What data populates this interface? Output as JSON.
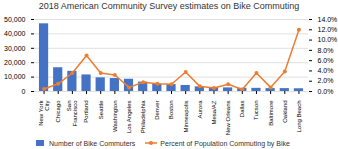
{
  "chart_data": {
    "type": "bar",
    "title": "2018 American Community Survey estimates on Bike Commuting",
    "categories": [
      "New York\nCity",
      "Chicago",
      "San\nFrancisco",
      "Portland",
      "Seattle",
      "Washington",
      "Los Angeles",
      "Philadelphia",
      "Denver",
      "Boston",
      "Minneapolis",
      "Aurora",
      "Mesa/AZ",
      "New Orleans",
      "Dallas",
      "Tucson",
      "Baltimore",
      "Oakland",
      "Long Beach"
    ],
    "series": [
      {
        "name": "Number of Bike Commuters",
        "type": "bar",
        "color": "#4472C4",
        "values": [
          47000,
          16500,
          14000,
          11500,
          9500,
          9000,
          8500,
          6500,
          5000,
          4800,
          4200,
          3200,
          2800,
          2500,
          2200,
          2200,
          2000,
          2000,
          1900
        ]
      },
      {
        "name": "Percent of Population Commuting by Bike",
        "type": "line",
        "axis": "y2",
        "color": "#ED7D31",
        "marker": "circle",
        "values": [
          0.5,
          1.5,
          3.6,
          7.0,
          3.6,
          3.2,
          0.8,
          1.8,
          1.5,
          1.4,
          3.8,
          1.0,
          0.7,
          1.4,
          0.4,
          3.6,
          0.8,
          3.9,
          12.0
        ]
      }
    ],
    "ylim": [
      0,
      50000
    ],
    "yticks": [
      0,
      {
        "value": 10000,
        "label": "10,000"
      },
      {
        "value": 20000,
        "label": "20,000"
      },
      {
        "value": 30000,
        "label": "30,000"
      },
      {
        "value": 40000,
        "label": "40,000"
      },
      {
        "value": 50000,
        "label": "50,000"
      }
    ],
    "y2lim": [
      0,
      14.0
    ],
    "y2ticks": [
      {
        "value": 0,
        "label": "0.0%"
      },
      {
        "value": 2,
        "label": "2.0%"
      },
      {
        "value": 4,
        "label": "4.0%"
      },
      {
        "value": 6,
        "label": "6.0%"
      },
      {
        "value": 8,
        "label": "8.0%"
      },
      {
        "value": 10,
        "label": "10.0%"
      },
      {
        "value": 12,
        "label": "12.0%"
      },
      {
        "value": 14,
        "label": "14.0%"
      }
    ],
    "grid": true,
    "legend": "lower left"
  }
}
